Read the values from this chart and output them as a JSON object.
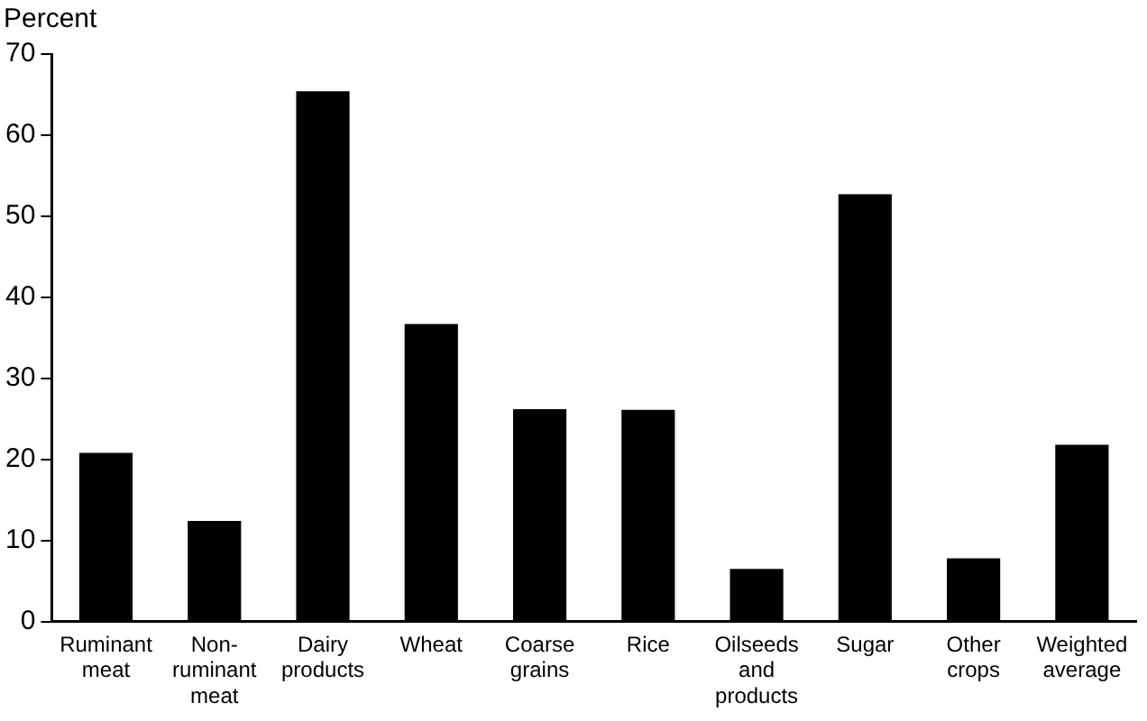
{
  "chart_data": {
    "type": "bar",
    "ylabel": "Percent",
    "categories": [
      "Ruminant meat",
      "Non-ruminant meat",
      "Dairy products",
      "Wheat",
      "Coarse grains",
      "Rice",
      "Oilseeds and products",
      "Sugar",
      "Other crops",
      "Weighted average"
    ],
    "values": [
      20.8,
      12.4,
      65.4,
      36.7,
      26.2,
      26.1,
      6.5,
      52.7,
      7.8,
      21.8
    ],
    "color": "#000000",
    "ylim": [
      0,
      70
    ],
    "yticks": [
      0,
      10,
      20,
      30,
      40,
      50,
      60,
      70
    ],
    "grid": false,
    "legend": false
  }
}
